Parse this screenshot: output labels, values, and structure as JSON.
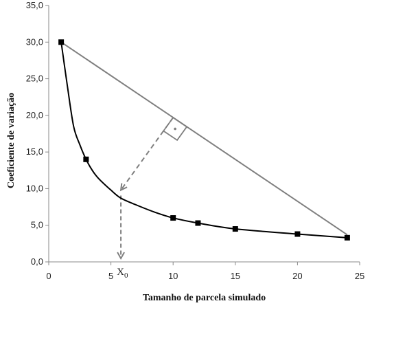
{
  "chart_data": {
    "type": "scatter",
    "title": "",
    "xlabel": "Tamanho de parcela simulado",
    "ylabel": "Coeficiente de variação",
    "xlim": [
      0,
      25
    ],
    "ylim": [
      0,
      35
    ],
    "x_ticks": [
      "0",
      "5",
      "10",
      "15",
      "20",
      "25"
    ],
    "y_ticks": [
      "0,0",
      "5,0",
      "10,0",
      "15,0",
      "20,0",
      "25,0",
      "30,0",
      "35,0"
    ],
    "grid": false,
    "legend": "none",
    "series": [
      {
        "values": [
          {
            "x": 1,
            "y": 30.0
          },
          {
            "x": 3,
            "y": 14.0
          },
          {
            "x": 10,
            "y": 6.0
          },
          {
            "x": 12,
            "y": 5.3
          },
          {
            "x": 15,
            "y": 4.5
          },
          {
            "x": 20,
            "y": 3.8
          },
          {
            "x": 24,
            "y": 3.3
          }
        ]
      }
    ],
    "curve": [
      {
        "x": 1,
        "y": 30.0
      },
      {
        "x": 1.5,
        "y": 24.0
      },
      {
        "x": 2,
        "y": 18.5
      },
      {
        "x": 2.5,
        "y": 16.0
      },
      {
        "x": 3,
        "y": 14.0
      },
      {
        "x": 3.5,
        "y": 12.5
      },
      {
        "x": 4,
        "y": 11.4
      },
      {
        "x": 5,
        "y": 9.8
      },
      {
        "x": 5.8,
        "y": 8.7
      },
      {
        "x": 7,
        "y": 7.8
      },
      {
        "x": 8.5,
        "y": 6.8
      },
      {
        "x": 10,
        "y": 6.0
      },
      {
        "x": 12,
        "y": 5.3
      },
      {
        "x": 15,
        "y": 4.5
      },
      {
        "x": 20,
        "y": 3.8
      },
      {
        "x": 24,
        "y": 3.3
      }
    ],
    "chord": [
      {
        "x": 1,
        "y": 30.0
      },
      {
        "x": 24,
        "y": 3.7
      }
    ],
    "annotations": {
      "x0_label": "X",
      "x0_subscript": "0",
      "perpendicular_from": {
        "x": 10,
        "y": 19.7
      },
      "perpendicular_to": {
        "x": 5.8,
        "y": 9.8
      },
      "x0_value": 5.8
    },
    "colors": {
      "data": "#000000",
      "chord": "#7f7f7f",
      "dashed": "#7f7f7f",
      "axis": "#888888"
    }
  }
}
